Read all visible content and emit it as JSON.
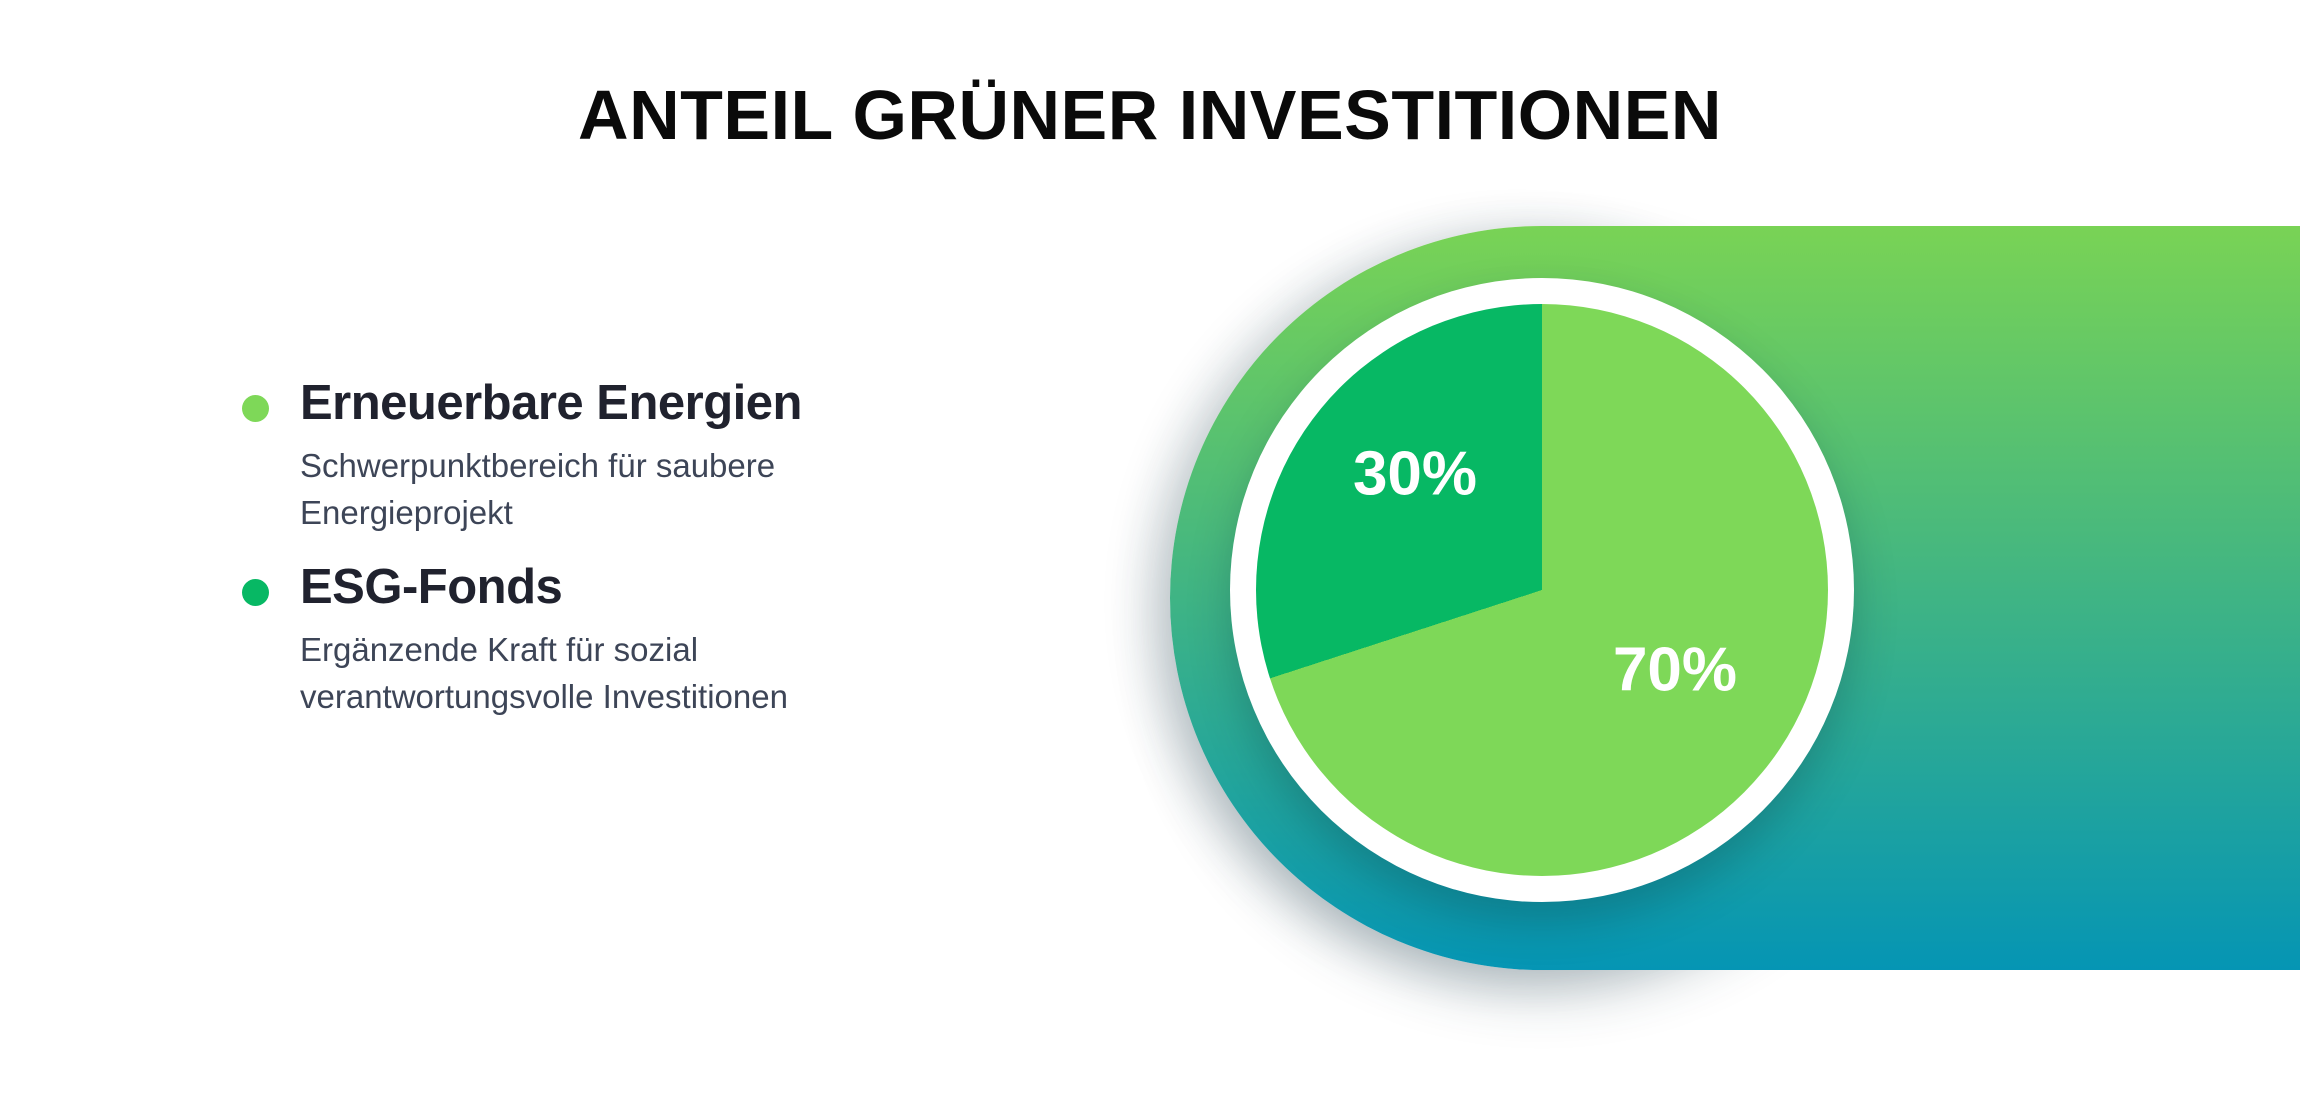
{
  "title": "ANTEIL GRÜNER INVESTITIONEN",
  "legend": {
    "items": [
      {
        "label": "Erneuerbare Energien",
        "desc_line1": "Schwerpunktbereich für saubere",
        "desc_line2": "Energieprojekt"
      },
      {
        "label": "ESG-Fonds",
        "desc_line1": "Ergänzende Kraft für sozial",
        "desc_line2": "verantwortungsvolle Investitionen"
      }
    ]
  },
  "chart_data": {
    "type": "pie",
    "title": "ANTEIL GRÜNER INVESTITIONEN",
    "slices": [
      {
        "label": "Erneuerbare Energien",
        "value": 70,
        "display": "70%",
        "color": "#7ED858"
      },
      {
        "label": "ESG-Fonds",
        "value": 30,
        "display": "30%",
        "color": "#07B864"
      }
    ],
    "start_angle_deg": 0,
    "direction": "clockwise",
    "label_color": "#FFFFFF",
    "legend_position": "left"
  },
  "colors": {
    "background": "#FFFFFF",
    "band_gradient_top": "#79D355",
    "band_gradient_bottom": "#0595B4",
    "ring": "#FFFFFF",
    "title_text": "#0A0A0A",
    "legend_label_text": "#20222E",
    "legend_desc_text": "#3D4557"
  }
}
